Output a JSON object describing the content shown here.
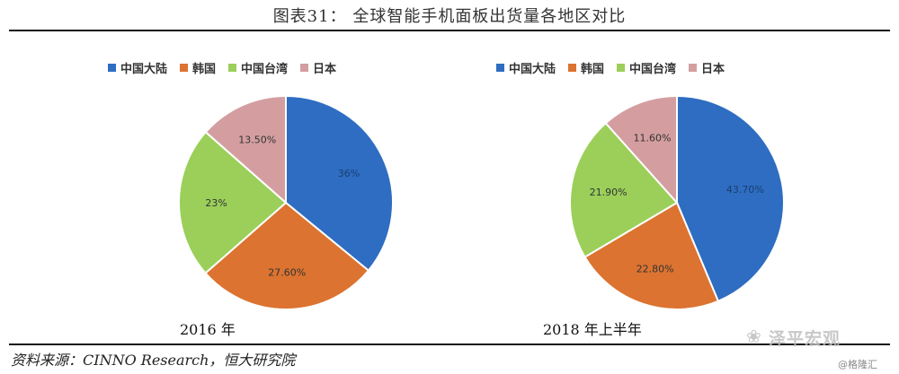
{
  "title": "图表31：   全球智能手机面板出货量各地区对比",
  "source": "资料来源：CINNO Research，恒大研究院",
  "watermark": "泽平宏观",
  "credit": "@格隆汇",
  "colors": {
    "china": "#2E6DC1",
    "korea": "#DC7330",
    "taiwan": "#9BCF5A",
    "japan": "#D49EA0"
  },
  "chart_data": [
    {
      "type": "pie",
      "title": "2016 年",
      "legend": [
        "中国大陆",
        "韩国",
        "中国台湾",
        "日本"
      ],
      "values": [
        36,
        27.6,
        23,
        13.5
      ],
      "labels": [
        "36%",
        "27.60%",
        "23%",
        "13.50%"
      ],
      "legend_position": "top"
    },
    {
      "type": "pie",
      "title": "2018 年上半年",
      "legend": [
        "中国大陆",
        "韩国",
        "中国台湾",
        "日本"
      ],
      "values": [
        43.7,
        22.8,
        21.9,
        11.6
      ],
      "labels": [
        "43.70%",
        "22.80%",
        "21.90%",
        "11.60%"
      ],
      "legend_position": "top"
    }
  ]
}
